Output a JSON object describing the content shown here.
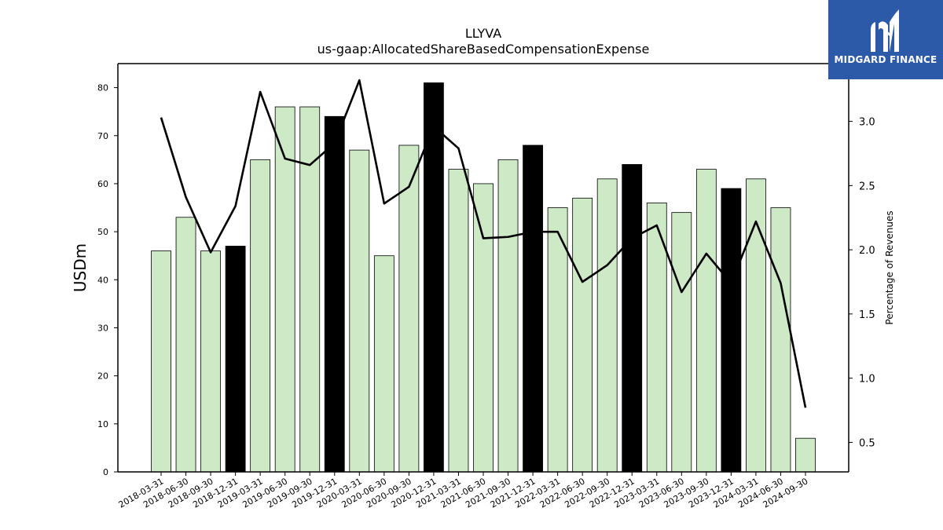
{
  "chart_data": {
    "type": "bar",
    "title": "LLYVA",
    "subtitle": "us-gaap:AllocatedShareBasedCompensationExpense",
    "ylabel": "USDm",
    "y2label": "Percentage of Revenues",
    "ylim": [
      0,
      85
    ],
    "y2lim": [
      0.27,
      3.45
    ],
    "yticks": [
      0,
      10,
      20,
      30,
      40,
      50,
      60,
      70,
      80
    ],
    "y2ticks": [
      0.5,
      1.0,
      1.5,
      2.0,
      2.5,
      3.0
    ],
    "categories": [
      "2018-03-31",
      "2018-06-30",
      "2018-09-30",
      "2018-12-31",
      "2019-03-31",
      "2019-06-30",
      "2019-09-30",
      "2019-12-31",
      "2020-03-31",
      "2020-06-30",
      "2020-09-30",
      "2020-12-31",
      "2021-03-31",
      "2021-06-30",
      "2021-09-30",
      "2021-12-31",
      "2022-03-31",
      "2022-06-30",
      "2022-09-30",
      "2022-12-31",
      "2023-03-31",
      "2023-06-30",
      "2023-09-30",
      "2023-12-31",
      "2024-03-31",
      "2024-06-30",
      "2024-09-30"
    ],
    "series": [
      {
        "type": "bar",
        "values": [
          46,
          53,
          46,
          47,
          65,
          76,
          76,
          74,
          67,
          45,
          68,
          81,
          63,
          60,
          65,
          68,
          55,
          57,
          61,
          64,
          56,
          54,
          63,
          59,
          61,
          55,
          7
        ],
        "highlight": [
          false,
          false,
          false,
          true,
          false,
          false,
          false,
          true,
          false,
          false,
          false,
          true,
          false,
          false,
          false,
          true,
          false,
          false,
          false,
          true,
          false,
          false,
          false,
          true,
          false,
          false,
          false
        ]
      },
      {
        "type": "line",
        "axis": "right",
        "values": [
          3.03,
          2.41,
          1.98,
          2.34,
          3.23,
          2.71,
          2.66,
          2.83,
          3.32,
          2.36,
          2.49,
          2.96,
          2.79,
          2.09,
          2.1,
          2.14,
          2.14,
          1.75,
          1.88,
          2.09,
          2.19,
          1.67,
          1.97,
          1.74,
          2.22,
          1.74,
          0.77
        ]
      }
    ],
    "colors": {
      "bar": "#cde9c6",
      "bar_highlight": "#000000",
      "line": "#000000"
    },
    "grid": false,
    "legend": "none"
  },
  "logo": {
    "text": "MIDGARD FINANCE"
  }
}
